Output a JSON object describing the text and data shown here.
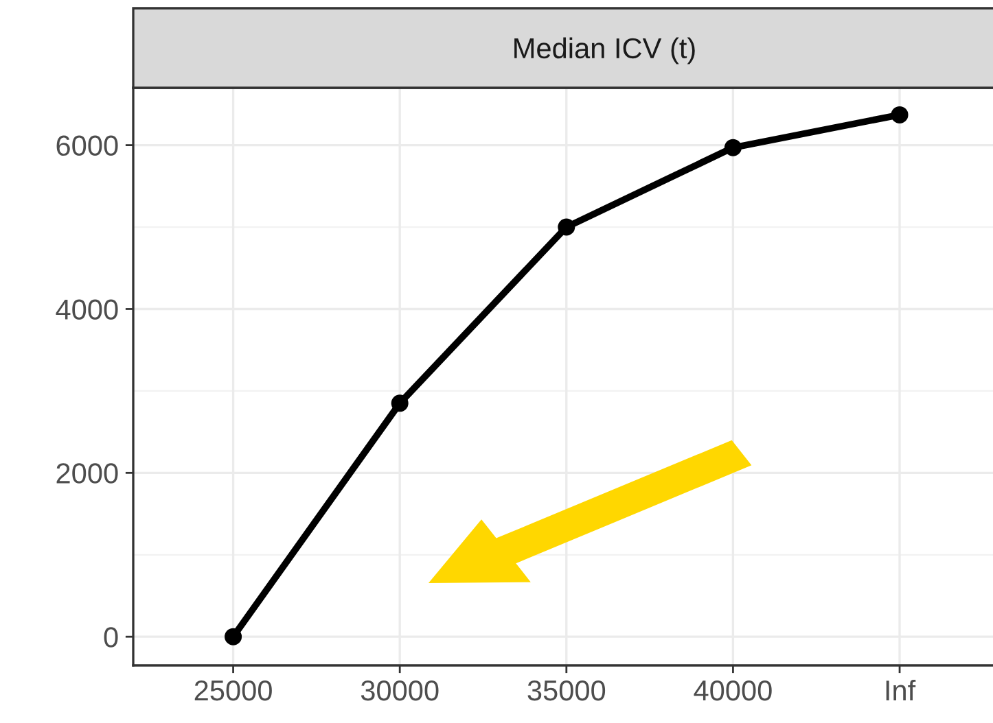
{
  "chart_data": {
    "type": "line",
    "title": "Median ICV (t)",
    "categories": [
      "25000",
      "30000",
      "35000",
      "40000",
      "Inf"
    ],
    "series": [
      {
        "color": "#000000",
        "values": [
          0,
          2850,
          5000,
          5970,
          6370
        ]
      }
    ],
    "ylim": [
      -350,
      6700
    ],
    "yticks": [
      0,
      2000,
      4000,
      6000
    ],
    "grid": true,
    "marker": "circle",
    "line_style": "solid"
  }
}
